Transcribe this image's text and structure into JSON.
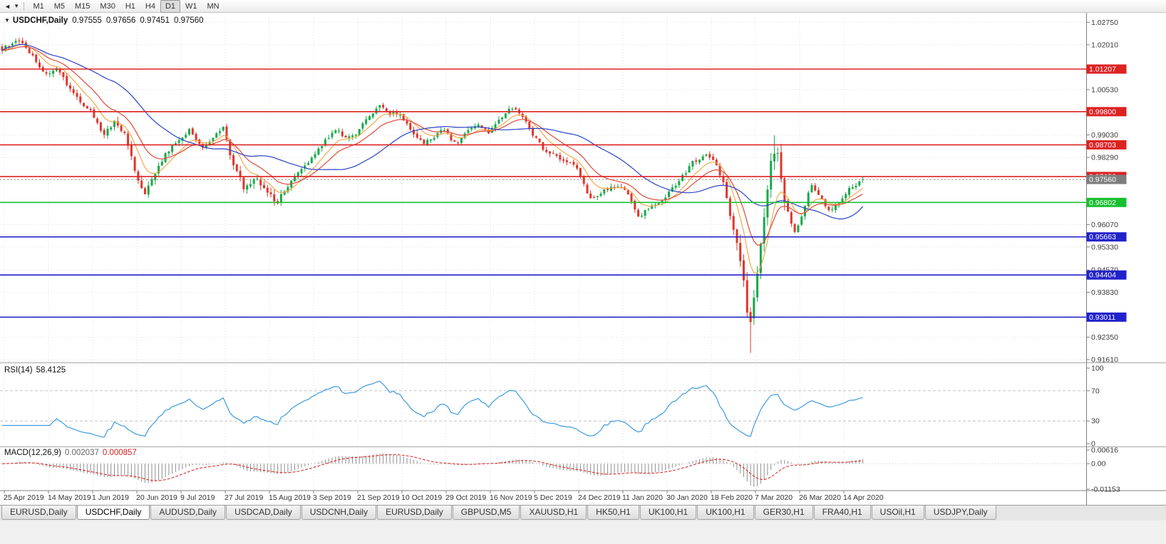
{
  "toolbar": {
    "timeframes": [
      "M1",
      "M5",
      "M15",
      "M30",
      "H1",
      "H4",
      "D1",
      "W1",
      "MN"
    ],
    "active_timeframe": "D1"
  },
  "chart": {
    "symbol_title": "USDCHF,Daily",
    "ohlc": {
      "open": "0.97555",
      "high": "0.97656",
      "low": "0.97451",
      "close": "0.97560"
    },
    "price_axis": {
      "min": 0.9161,
      "max": 1.029,
      "grid_ticks": [
        1.0275,
        1.0201,
        1.0127,
        1.0053,
        0.9979,
        0.9903,
        0.9829,
        0.9755,
        0.9681,
        0.9607,
        0.9533,
        0.9457,
        0.9383,
        0.9309,
        0.9235,
        0.9161
      ],
      "labels": [
        "1.02750",
        "1.02010",
        "1.00530",
        "0.99030",
        "0.98290",
        "0.96070",
        "0.95330",
        "0.94570",
        "0.93830",
        "0.92350",
        "0.91610"
      ]
    },
    "levels": [
      {
        "price": 1.01207,
        "label": "1.01207",
        "color": "#dd2222"
      },
      {
        "price": 0.998,
        "label": "0.99800",
        "color": "#dd2222"
      },
      {
        "price": 0.98703,
        "label": "0.98703",
        "color": "#dd2222"
      },
      {
        "price": 0.97658,
        "label": "0.97658",
        "color": "#dd2222"
      },
      {
        "price": 0.96802,
        "label": "0.96802",
        "color": "#17c02e"
      },
      {
        "price": 0.95663,
        "label": "0.95663",
        "color": "#2222cc"
      },
      {
        "price": 0.94404,
        "label": "0.94404",
        "color": "#2222cc"
      },
      {
        "price": 0.93011,
        "label": "0.93011",
        "color": "#2222cc"
      }
    ],
    "current_price": {
      "price": 0.9756,
      "label": "0.97560",
      "color": "#7d7d7d"
    },
    "dates": [
      "25 Apr 2019",
      "14 May 2019",
      "1 Jun 2019",
      "20 Jun 2019",
      "9 Jul 2019",
      "27 Jul 2019",
      "15 Aug 2019",
      "3 Sep 2019",
      "21 Sep 2019",
      "10 Oct 2019",
      "29 Oct 2019",
      "16 Nov 2019",
      "5 Dec 2019",
      "24 Dec 2019",
      "11 Jan 2020",
      "30 Jan 2020",
      "18 Feb 2020",
      "7 Mar 2020",
      "26 Mar 2020",
      "14 Apr 2020"
    ],
    "candles": {
      "count": 254,
      "seed": 20200501,
      "anchors": [
        [
          0.0,
          1.0185
        ],
        [
          0.018,
          1.0222
        ],
        [
          0.035,
          1.0165
        ],
        [
          0.051,
          1.0105
        ],
        [
          0.065,
          1.012
        ],
        [
          0.078,
          1.006
        ],
        [
          0.092,
          1.001
        ],
        [
          0.103,
          0.9985
        ],
        [
          0.118,
          0.9905
        ],
        [
          0.132,
          0.995
        ],
        [
          0.145,
          0.989
        ],
        [
          0.155,
          0.977
        ],
        [
          0.165,
          0.9705
        ],
        [
          0.178,
          0.978
        ],
        [
          0.192,
          0.985
        ],
        [
          0.206,
          0.989
        ],
        [
          0.218,
          0.992
        ],
        [
          0.232,
          0.986
        ],
        [
          0.245,
          0.9895
        ],
        [
          0.257,
          0.993
        ],
        [
          0.268,
          0.98
        ],
        [
          0.282,
          0.9725
        ],
        [
          0.295,
          0.976
        ],
        [
          0.308,
          0.972
        ],
        [
          0.32,
          0.968
        ],
        [
          0.335,
          0.975
        ],
        [
          0.348,
          0.9795
        ],
        [
          0.359,
          0.982
        ],
        [
          0.372,
          0.9875
        ],
        [
          0.388,
          0.992
        ],
        [
          0.4,
          0.9895
        ],
        [
          0.411,
          0.9905
        ],
        [
          0.425,
          0.996
        ],
        [
          0.438,
          1.0005
        ],
        [
          0.45,
          0.9975
        ],
        [
          0.462,
          0.9975
        ],
        [
          0.475,
          0.992
        ],
        [
          0.488,
          0.9875
        ],
        [
          0.5,
          0.989
        ],
        [
          0.513,
          0.9925
        ],
        [
          0.527,
          0.987
        ],
        [
          0.54,
          0.9915
        ],
        [
          0.553,
          0.9945
        ],
        [
          0.565,
          0.9905
        ],
        [
          0.578,
          0.9955
        ],
        [
          0.59,
          0.999
        ],
        [
          0.603,
          0.9975
        ],
        [
          0.616,
          0.9905
        ],
        [
          0.63,
          0.9855
        ],
        [
          0.643,
          0.983
        ],
        [
          0.655,
          0.9815
        ],
        [
          0.667,
          0.98
        ],
        [
          0.678,
          0.972
        ],
        [
          0.687,
          0.969
        ],
        [
          0.7,
          0.9722
        ],
        [
          0.718,
          0.9737
        ],
        [
          0.728,
          0.97
        ],
        [
          0.74,
          0.9635
        ],
        [
          0.755,
          0.9665
        ],
        [
          0.77,
          0.97
        ],
        [
          0.788,
          0.9755
        ],
        [
          0.803,
          0.9815
        ],
        [
          0.82,
          0.984
        ],
        [
          0.832,
          0.979
        ],
        [
          0.843,
          0.968
        ],
        [
          0.853,
          0.956
        ],
        [
          0.861,
          0.945
        ],
        [
          0.868,
          0.927
        ],
        [
          0.873,
          0.934
        ],
        [
          0.879,
          0.948
        ],
        [
          0.885,
          0.962
        ],
        [
          0.891,
          0.976
        ],
        [
          0.896,
          0.9855
        ],
        [
          0.901,
          0.983
        ],
        [
          0.908,
          0.9705
        ],
        [
          0.915,
          0.9625
        ],
        [
          0.922,
          0.9575
        ],
        [
          0.93,
          0.965
        ],
        [
          0.94,
          0.974
        ],
        [
          0.95,
          0.97
        ],
        [
          0.962,
          0.9645
        ],
        [
          0.972,
          0.9685
        ],
        [
          0.985,
          0.9725
        ],
        [
          1.0,
          0.9756
        ]
      ],
      "extreme_low": 0.9183,
      "rebound_high": 0.9902
    },
    "colors": {
      "bull": "#17a94a",
      "bear": "#e0352b",
      "ma_fast": "#f2a33c",
      "ma_mid": "#e04838",
      "ma_slow": "#2742c8",
      "grid": "#dcdcdc"
    }
  },
  "rsi": {
    "label": "RSI(14)",
    "value": "58.4125",
    "color": "#3f9be0",
    "axis_labels": [
      "100",
      "70",
      "30",
      "0"
    ],
    "guide_levels": [
      70,
      30
    ]
  },
  "macd": {
    "label": "MACD(12,26,9)",
    "value_main": "0.002037",
    "value_signal": "0.000857",
    "axis_labels": [
      "0.00616",
      "0.00",
      "-0.01153"
    ],
    "axis_max": 0.00616,
    "axis_min": -0.01153,
    "hist_color": "#8f8f8f",
    "signal_color": "#d42222"
  },
  "tabs": {
    "items": [
      "EURUSD,Daily",
      "USDCHF,Daily",
      "AUDUSD,Daily",
      "USDCAD,Daily",
      "USDCNH,Daily",
      "EURUSD,Daily",
      "GBPUSD,M5",
      "XAUUSD,H1",
      "HK50,H1",
      "UK100,H1",
      "UK100,H1",
      "GER30,H1",
      "FRA40,H1",
      "USOil,H1",
      "USDJPY,Daily"
    ],
    "active_index": 1
  }
}
